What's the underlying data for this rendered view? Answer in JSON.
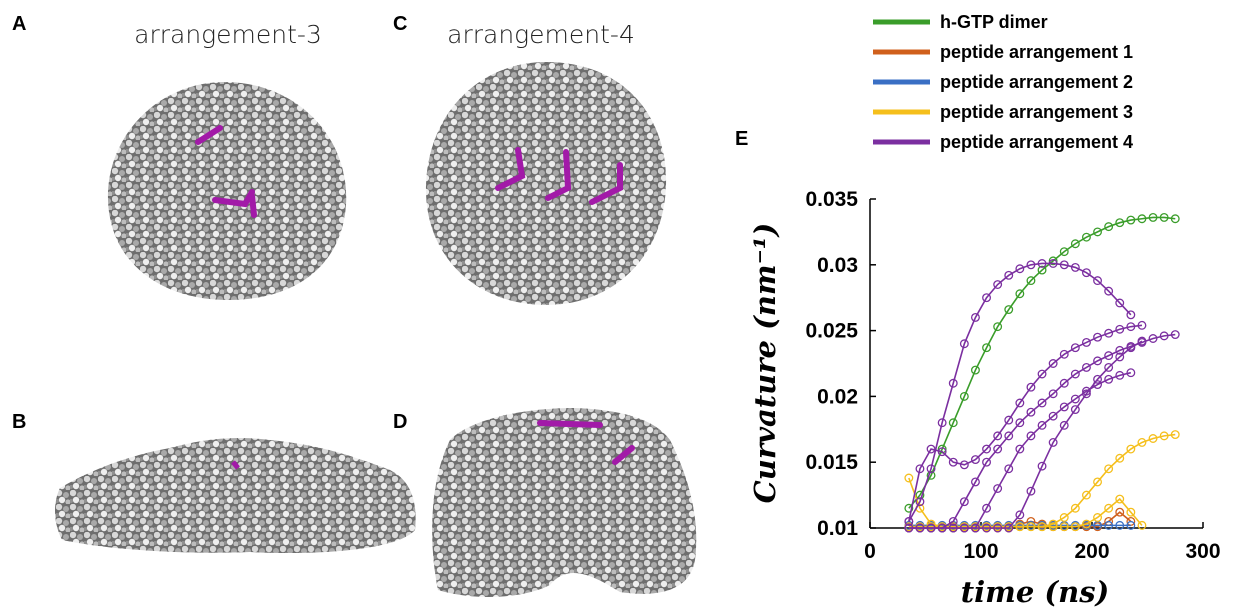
{
  "panels": [
    {
      "label": "A",
      "title": "arrangement-3"
    },
    {
      "label": "B"
    },
    {
      "label": "C",
      "title": "arrangement-4"
    },
    {
      "label": "D"
    }
  ],
  "chart_data": {
    "type": "line",
    "label": "E",
    "xlabel": "time (ns)",
    "ylabel": "Curvature (nm⁻¹)",
    "xlim": [
      0,
      300
    ],
    "ylim": [
      0.01,
      0.035
    ],
    "xticks": [
      0,
      100,
      200,
      300
    ],
    "yticks": [
      0.01,
      0.015,
      0.02,
      0.025,
      0.03,
      0.035
    ],
    "x": [
      35,
      45,
      55,
      65,
      75,
      85,
      95,
      105,
      115,
      125,
      135,
      145,
      155,
      165,
      175,
      185,
      195,
      205,
      215,
      225,
      235,
      245,
      255,
      265,
      275
    ],
    "series": [
      {
        "name": "h-GTP dimer",
        "color": "#3a9d2a",
        "runs": [
          [
            0.0115,
            0.0125,
            0.014,
            0.016,
            0.018,
            0.02,
            0.022,
            0.0237,
            0.0253,
            0.0266,
            0.0278,
            0.0288,
            0.0296,
            0.0303,
            0.031,
            0.0316,
            0.0321,
            0.0325,
            0.0329,
            0.0332,
            0.0334,
            0.0335,
            0.0336,
            0.0336,
            0.0335
          ]
        ]
      },
      {
        "name": "peptide arrangement 1",
        "color": "#d0601c",
        "runs": [
          [
            0.01,
            0.01,
            0.01,
            0.01,
            0.01,
            0.01,
            0.01,
            0.01,
            0.01,
            0.01,
            0.0103,
            0.0105,
            0.0103,
            0.0101,
            0.0101,
            0.0101,
            0.0101,
            0.0101,
            0.0105,
            0.0112,
            0.0105,
            null,
            null,
            null,
            null
          ]
        ]
      },
      {
        "name": "peptide arrangement 2",
        "color": "#3a6fc4",
        "runs": [
          [
            0.0102,
            0.0102,
            0.0102,
            0.0102,
            0.0102,
            0.0102,
            0.0102,
            0.0102,
            0.0102,
            0.0102,
            0.0102,
            0.0102,
            0.0102,
            0.0102,
            0.0102,
            0.0102,
            0.0102,
            0.0102,
            0.0102,
            0.0102,
            0.0102,
            null,
            null,
            null,
            null
          ]
        ]
      },
      {
        "name": "peptide arrangement 3",
        "color": "#f5bf1c",
        "runs": [
          [
            0.0138,
            0.0115,
            0.0103,
            0.0101,
            0.0101,
            0.0101,
            0.0101,
            0.0101,
            0.0101,
            0.0101,
            0.0101,
            0.0101,
            0.0101,
            0.0103,
            0.0108,
            0.0115,
            0.0125,
            0.0135,
            0.0145,
            0.0153,
            0.016,
            0.0165,
            0.0168,
            0.017,
            0.0171
          ],
          [
            0.0101,
            0.0101,
            0.0101,
            0.0101,
            0.0101,
            0.0101,
            0.0101,
            0.0101,
            0.0101,
            0.0101,
            0.0101,
            0.0101,
            0.0101,
            0.0101,
            0.0101,
            0.0101,
            0.0103,
            0.0108,
            0.0115,
            0.0122,
            0.0112,
            0.0102,
            null,
            null,
            null
          ]
        ]
      },
      {
        "name": "peptide arrangement 4",
        "color": "#7b2fa0",
        "runs": [
          [
            0.0105,
            0.012,
            0.0145,
            0.018,
            0.021,
            0.024,
            0.026,
            0.0275,
            0.0285,
            0.0292,
            0.0297,
            0.03,
            0.0301,
            0.0301,
            0.03,
            0.0298,
            0.0294,
            0.0288,
            0.028,
            0.0271,
            0.0262,
            null,
            null,
            null,
            null
          ],
          [
            0.0105,
            0.0145,
            0.016,
            0.0158,
            0.015,
            0.0148,
            0.0152,
            0.016,
            0.017,
            0.0182,
            0.0195,
            0.0207,
            0.0217,
            0.0225,
            0.0232,
            0.0237,
            0.0241,
            0.0245,
            0.0248,
            0.0251,
            0.0253,
            0.0254,
            null,
            null,
            null
          ],
          [
            0.01,
            0.01,
            0.01,
            0.01,
            0.0105,
            0.012,
            0.0135,
            0.015,
            0.016,
            0.017,
            0.018,
            0.0188,
            0.0195,
            0.0202,
            0.021,
            0.0217,
            0.0222,
            0.0227,
            0.0231,
            0.0235,
            0.0238,
            0.0241,
            0.0244,
            0.0246,
            0.0247
          ],
          [
            0.01,
            0.01,
            0.01,
            0.01,
            0.01,
            0.01,
            0.01,
            0.0115,
            0.013,
            0.0145,
            0.016,
            0.017,
            0.0178,
            0.0185,
            0.0192,
            0.0198,
            0.0204,
            0.0209,
            0.0213,
            0.0216,
            0.0218,
            null,
            null,
            null,
            null
          ],
          [
            0.01,
            0.01,
            0.01,
            0.01,
            0.01,
            0.01,
            0.01,
            0.01,
            0.01,
            0.01,
            0.011,
            0.0128,
            0.0147,
            0.0165,
            0.0178,
            0.019,
            0.0202,
            0.0213,
            0.0222,
            0.023,
            0.0237,
            0.0242,
            null,
            null,
            null
          ]
        ]
      }
    ]
  }
}
